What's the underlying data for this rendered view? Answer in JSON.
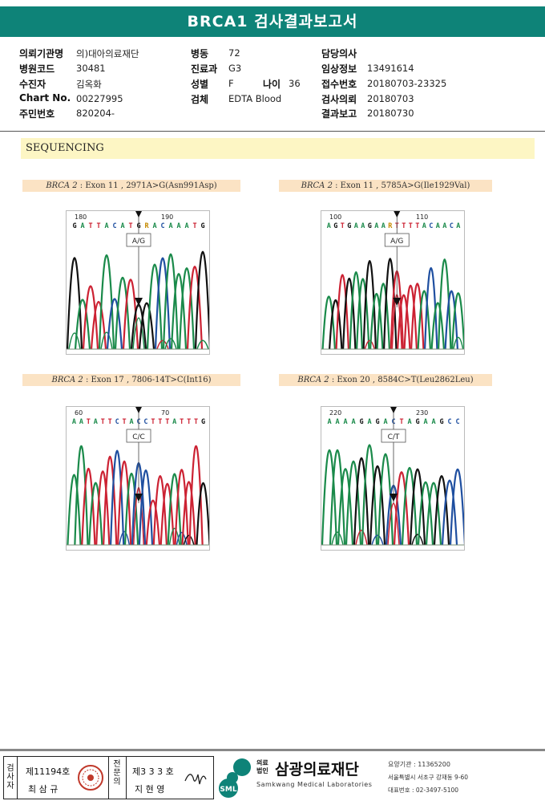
{
  "report": {
    "title": "BRCA1 검사결과보고서"
  },
  "patient_info": {
    "institution": {
      "label": "의뢰기관명",
      "value": "의)대아의료재단"
    },
    "hospital_code": {
      "label": "병원코드",
      "value": "30481"
    },
    "patient": {
      "label": "수진자",
      "value": "김옥화"
    },
    "chart_no": {
      "label": "Chart No.",
      "value": "00227995"
    },
    "resident_no": {
      "label": "주민번호",
      "value": "820204-"
    },
    "ward": {
      "label": "병동",
      "value": "72"
    },
    "department": {
      "label": "진료과",
      "value": "G3"
    },
    "sex": {
      "label": "성별",
      "value": "F"
    },
    "age": {
      "label": "나이",
      "value": "36"
    },
    "specimen": {
      "label": "검체",
      "value": "EDTA Blood"
    },
    "doctor": {
      "label": "담당의사",
      "value": ""
    },
    "clinical_info": {
      "label": "임상정보",
      "value": "13491614"
    },
    "receipt_no": {
      "label": "접수번호",
      "value": "20180703-23325"
    },
    "request_date": {
      "label": "검사의뢰",
      "value": "20180703"
    },
    "report_date": {
      "label": "결과보고",
      "value": "20180730"
    }
  },
  "section": {
    "title": "SEQUENCING"
  },
  "variants": [
    {
      "gene": "BRCA 2",
      "detail": " : Exon 11 , 2971A>G(Asn991Asp)",
      "pos_left": "180",
      "pos_right": "190",
      "bases": "G A T T A C A T G R A C A A A T G",
      "genotype": "A/G"
    },
    {
      "gene": "BRCA 2",
      "detail": " : Exon 11 , 5785A>G(Ile1929Val)",
      "pos_left": "100",
      "pos_right": "110",
      "bases": "A G T G A A G A A R T T T T A C A A C A",
      "genotype": "A/G"
    },
    {
      "gene": "BRCA 2",
      "detail": " : Exon 17 , 7806-14T>C(Int16)",
      "pos_left": "60",
      "pos_right": "70",
      "bases": "A A T A T T C T A C C T T T A T T T G",
      "genotype": "C/C"
    },
    {
      "gene": "BRCA 2",
      "detail": " : Exon 20 , 8584C>T(Leu2862Leu)",
      "pos_left": "220",
      "pos_right": "230",
      "bases": "A A A A G A G A C T A G A A G C C",
      "genotype": "C/T"
    }
  ],
  "colors": {
    "A": "#1a8a4a",
    "C": "#1f4fa0",
    "G": "#111111",
    "T": "#cc2233",
    "brand": "#0e8378"
  },
  "signatures": {
    "examiner_label": "검사자",
    "examiner_no": "제11194호",
    "examiner_name": "최 삼 규",
    "specialist_label": "전문의",
    "specialist_no": "제3 3 3 호",
    "specialist_name": "지 현 영"
  },
  "lab": {
    "type_label": "의료법인",
    "name": "삼광의료재단",
    "english_name": "Samkwang Medical Laboratories",
    "logo_text": "SML",
    "institution_code": "요양기관 : 11365200",
    "address": "서울특별시 서초구 강재동 9-60",
    "phone": "대표번호 : 02-3497-5100"
  }
}
